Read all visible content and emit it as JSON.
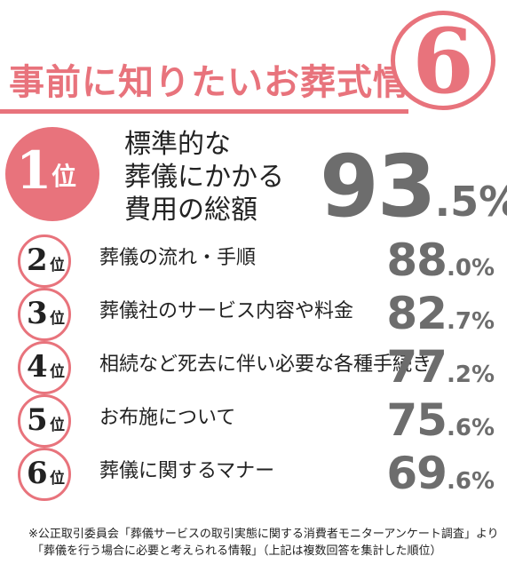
{
  "header": {
    "title": "事前に知りたいお葬式情報",
    "number": "6"
  },
  "chart_data": {
    "type": "table",
    "title": "事前に知りたいお葬式情報",
    "rank_suffix": "位",
    "unit": "%",
    "items": [
      {
        "rank": "1",
        "label_lines": [
          "標準的な",
          "葬儀にかかる",
          "費用の総額"
        ],
        "value_int": "93",
        "value_dec": ".5",
        "value": 93.5
      },
      {
        "rank": "2",
        "label": "葬儀の流れ・手順",
        "value_int": "88",
        "value_dec": ".0",
        "value": 88.0
      },
      {
        "rank": "3",
        "label": "葬儀社のサービス内容や料金",
        "value_int": "82",
        "value_dec": ".7",
        "value": 82.7
      },
      {
        "rank": "4",
        "label": "相続など死去に伴い必要な各種手続き",
        "value_int": "77",
        "value_dec": ".2",
        "value": 77.2
      },
      {
        "rank": "5",
        "label": "お布施について",
        "value_int": "75",
        "value_dec": ".6",
        "value": 75.6
      },
      {
        "rank": "6",
        "label": "葬儀に関するマナー",
        "value_int": "69",
        "value_dec": ".6",
        "value": 69.6
      }
    ]
  },
  "footer": {
    "source_line1": "※公正取引委員会「葬儀サービスの取引実態に関する消費者モニターアンケート調査」より",
    "source_line2": "「葬儀を行う場合に必要と考えられる情報」（上記は複数回答を集計した順位）"
  },
  "colors": {
    "accent": "#e8737c",
    "value_gray": "#6d6d6d",
    "text": "#222222"
  }
}
